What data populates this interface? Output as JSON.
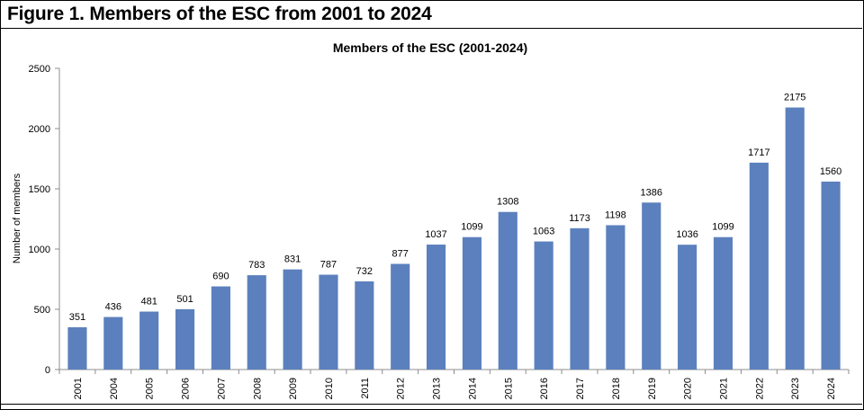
{
  "figure_title": "Figure 1. Members of the ESC from 2001 to 2024",
  "colors": {
    "bar": "#5b80bd",
    "axis": "#8c8c8c"
  },
  "chart_data": {
    "type": "bar",
    "title": "Members of the ESC (2001-2024)",
    "xlabel": "",
    "ylabel": "Number of members",
    "ylim": [
      0,
      2500
    ],
    "yticks": [
      0,
      500,
      1000,
      1500,
      2000,
      2500
    ],
    "grid": false,
    "legend": "none",
    "categories": [
      "2001",
      "2004",
      "2005",
      "2006",
      "2007",
      "2008",
      "2009",
      "2010",
      "2011",
      "2012",
      "2013",
      "2014",
      "2015",
      "2016",
      "2017",
      "2018",
      "2019",
      "2020",
      "2021",
      "2022",
      "2023",
      "2024"
    ],
    "values": [
      351,
      436,
      481,
      501,
      690,
      783,
      831,
      787,
      732,
      877,
      1037,
      1099,
      1308,
      1063,
      1173,
      1198,
      1386,
      1036,
      1099,
      1717,
      2175,
      1560
    ]
  }
}
